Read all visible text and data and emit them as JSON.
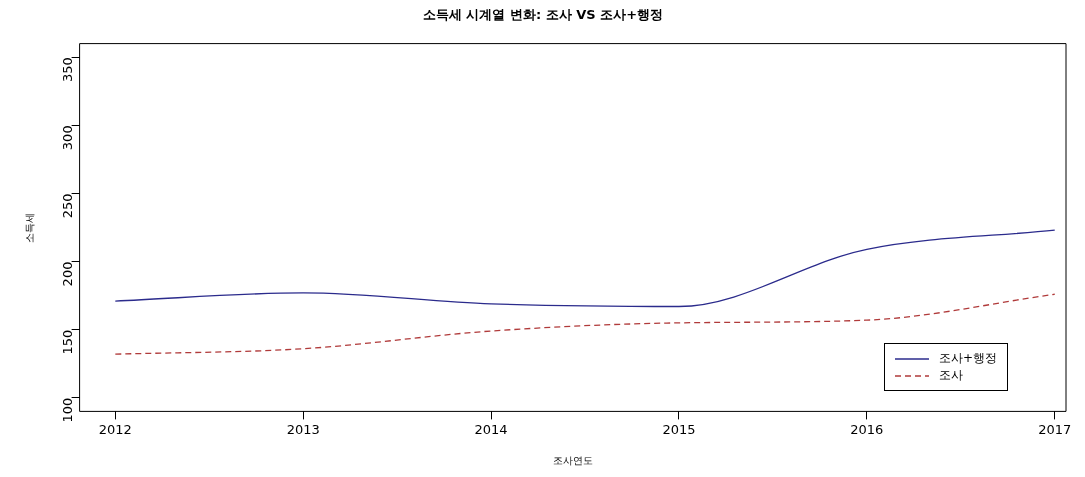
{
  "chart_data": {
    "type": "line",
    "title": "소득세 시계열 변화: 조사 VS 조사+행정",
    "xlabel": "조사연도",
    "ylabel": "소득세",
    "x": [
      2012,
      2013,
      2014,
      2015,
      2016,
      2017
    ],
    "series": [
      {
        "name": "조사+행정",
        "color": "#2b2b8c",
        "values": [
          171,
          177,
          169,
          167,
          209,
          223
        ],
        "line_style": "solid"
      },
      {
        "name": "조사",
        "color": "#b03a3a",
        "values": [
          132,
          136,
          149,
          155,
          157,
          176
        ],
        "line_style": "dashed"
      }
    ],
    "xlim": [
      2011.81,
      2017.06
    ],
    "xticks": [
      2012,
      2013,
      2014,
      2015,
      2016,
      2017
    ],
    "ylim": [
      90,
      360
    ],
    "yticks": [
      100,
      150,
      200,
      250,
      300,
      350
    ],
    "grid": false,
    "legend": "bottom right",
    "marker": "none"
  }
}
